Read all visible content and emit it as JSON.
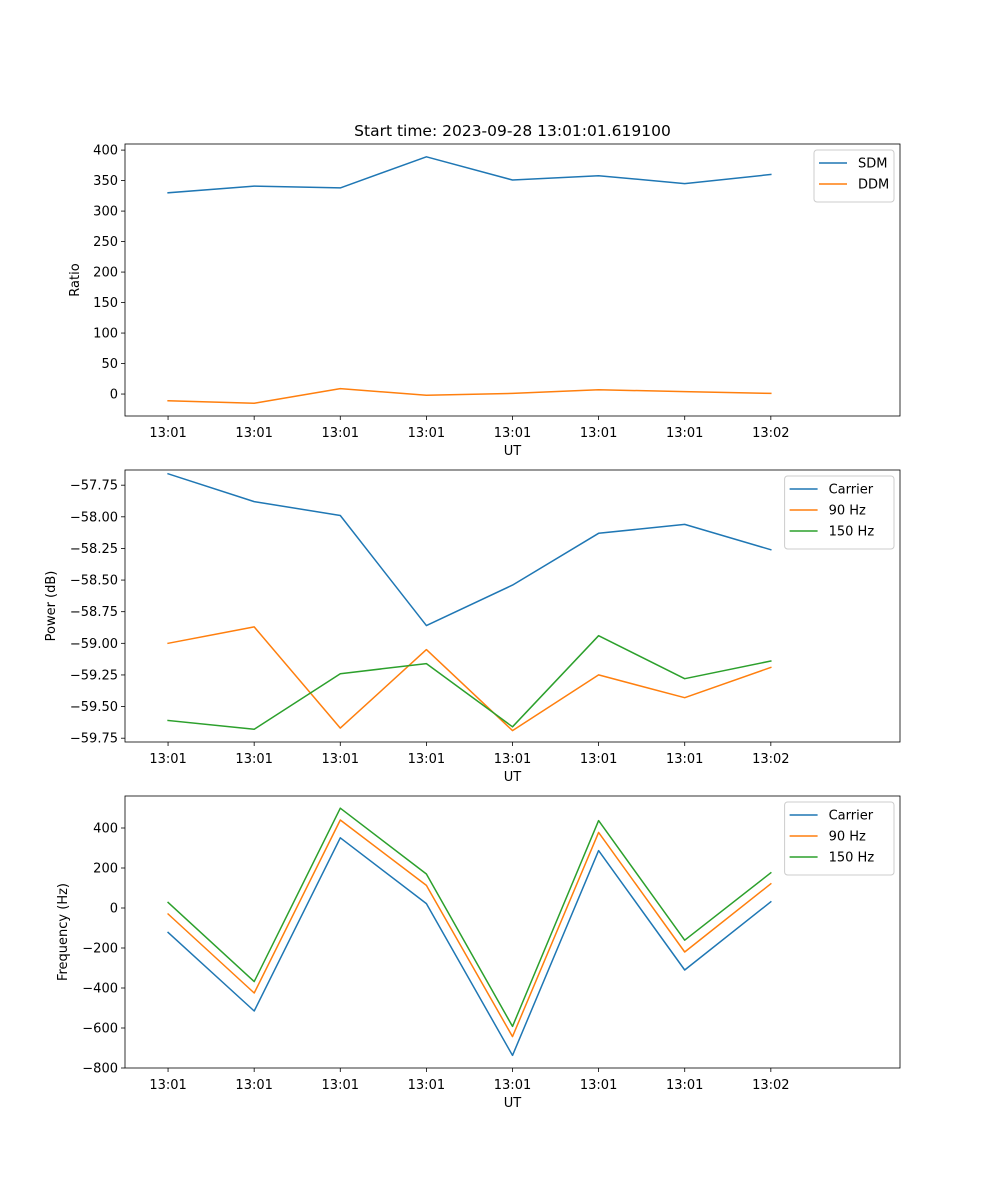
{
  "chart_data": [
    {
      "type": "line",
      "title": "Start time: 2023-09-28 13:01:01.619100",
      "xlabel": "UT",
      "ylabel": "Ratio",
      "x_tick_labels": [
        "13:01",
        "13:01",
        "13:01",
        "13:01",
        "13:01",
        "13:01",
        "13:01",
        "13:02"
      ],
      "x_index_range": [
        -0.5,
        8.5
      ],
      "x": [
        0,
        1,
        2,
        3,
        4,
        5,
        6,
        7
      ],
      "ylim": [
        -36,
        410
      ],
      "y_ticks": [
        0,
        50,
        100,
        150,
        200,
        250,
        300,
        350,
        400
      ],
      "legend_location": "upper right",
      "series": [
        {
          "name": "SDM",
          "color": "#1f77b4",
          "values": [
            330,
            341,
            338,
            389,
            351,
            358,
            345,
            360
          ]
        },
        {
          "name": "DDM",
          "color": "#ff7f0e",
          "values": [
            -11,
            -15,
            9,
            -2,
            1,
            7,
            4,
            1
          ]
        }
      ]
    },
    {
      "type": "line",
      "title": "",
      "xlabel": "UT",
      "ylabel": "Power (dB)",
      "x_tick_labels": [
        "13:01",
        "13:01",
        "13:01",
        "13:01",
        "13:01",
        "13:01",
        "13:01",
        "13:02"
      ],
      "x_index_range": [
        -0.5,
        8.5
      ],
      "x": [
        0,
        1,
        2,
        3,
        4,
        5,
        6,
        7
      ],
      "ylim": [
        -59.78,
        -57.63
      ],
      "y_ticks": [
        -57.75,
        -58.0,
        -58.25,
        -58.5,
        -58.75,
        -59.0,
        -59.25,
        -59.5,
        -59.75
      ],
      "y_tick_labels": [
        "−57.75",
        "−58.00",
        "−58.25",
        "−58.50",
        "−58.75",
        "−59.00",
        "−59.25",
        "−59.50",
        "−59.75"
      ],
      "legend_location": "upper right",
      "series": [
        {
          "name": "Carrier",
          "color": "#1f77b4",
          "values": [
            -57.66,
            -57.88,
            -57.99,
            -58.86,
            -58.54,
            -58.13,
            -58.06,
            -58.26
          ]
        },
        {
          "name": "90 Hz",
          "color": "#ff7f0e",
          "values": [
            -59.0,
            -58.87,
            -59.67,
            -59.05,
            -59.69,
            -59.25,
            -59.43,
            -59.19
          ]
        },
        {
          "name": "150 Hz",
          "color": "#2ca02c",
          "values": [
            -59.61,
            -59.68,
            -59.24,
            -59.16,
            -59.66,
            -58.94,
            -59.28,
            -59.14
          ]
        }
      ]
    },
    {
      "type": "line",
      "title": "",
      "xlabel": "UT",
      "ylabel": "Frequency (Hz)",
      "x_tick_labels": [
        "13:01",
        "13:01",
        "13:01",
        "13:01",
        "13:01",
        "13:01",
        "13:01",
        "13:02"
      ],
      "x_index_range": [
        -0.5,
        8.5
      ],
      "x": [
        0,
        1,
        2,
        3,
        4,
        5,
        6,
        7
      ],
      "ylim": [
        -800,
        560
      ],
      "y_ticks": [
        -800,
        -600,
        -400,
        -200,
        0,
        200,
        400
      ],
      "y_tick_labels": [
        "−800",
        "−600",
        "−400",
        "−200",
        "0",
        "200",
        "400"
      ],
      "legend_location": "upper right",
      "series": [
        {
          "name": "Carrier",
          "color": "#1f77b4",
          "values": [
            -122,
            -515,
            351,
            22,
            -737,
            287,
            -310,
            31
          ]
        },
        {
          "name": "90 Hz",
          "color": "#ff7f0e",
          "values": [
            -30,
            -425,
            440,
            113,
            -643,
            378,
            -220,
            121
          ]
        },
        {
          "name": "150 Hz",
          "color": "#2ca02c",
          "values": [
            28,
            -368,
            499,
            170,
            -592,
            437,
            -161,
            176
          ]
        }
      ]
    }
  ]
}
